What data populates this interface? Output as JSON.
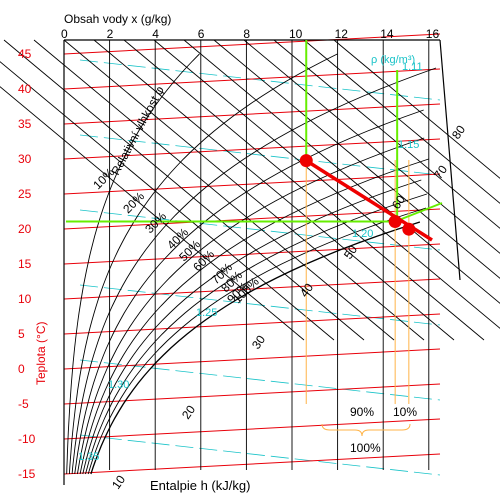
{
  "chart_data": {
    "type": "psychrometric",
    "x_axis": {
      "label": "Obsah vody x (g/kg)",
      "ticks": [
        "0",
        "2",
        "4",
        "6",
        "8",
        "10",
        "12",
        "14",
        "16"
      ]
    },
    "y_axis": {
      "label": "Teplota (°C)",
      "ticks": [
        "45",
        "40",
        "35",
        "30",
        "25",
        "20",
        "15",
        "10",
        "5",
        "0",
        "-5",
        "-10",
        "-15"
      ]
    },
    "enthalpy_axis": {
      "label": "Entalpie h (kJ/kg)",
      "ticks": [
        "10",
        "20",
        "30",
        "40",
        "50",
        "60",
        "70",
        "80"
      ]
    },
    "relative_humidity": {
      "label": "Relativní vlhkost φ",
      "lines": [
        "10%",
        "20%",
        "30%",
        "40%",
        "50%",
        "60%",
        "70%",
        "80%",
        "90%",
        "100%"
      ]
    },
    "density": {
      "label": "ρ (kg/m³)",
      "values": [
        "1.11",
        "1.15",
        "1.20",
        "1.25",
        "1.30",
        "1.35"
      ]
    },
    "mixing_points": [
      {
        "x": 10.8,
        "t": 31.2
      },
      {
        "x": 14.7,
        "t": 22.5
      },
      {
        "x": 15.3,
        "t": 21.4
      }
    ],
    "mixing_ratio": {
      "left": "90%",
      "right": "10%",
      "total": "100%"
    },
    "colors": {
      "grid_red": "#e8000a",
      "density_cyan": "#19c3c8",
      "process_green": "#66ee00",
      "guide_orange": "#ffb347",
      "process_red": "#ee0000"
    }
  }
}
